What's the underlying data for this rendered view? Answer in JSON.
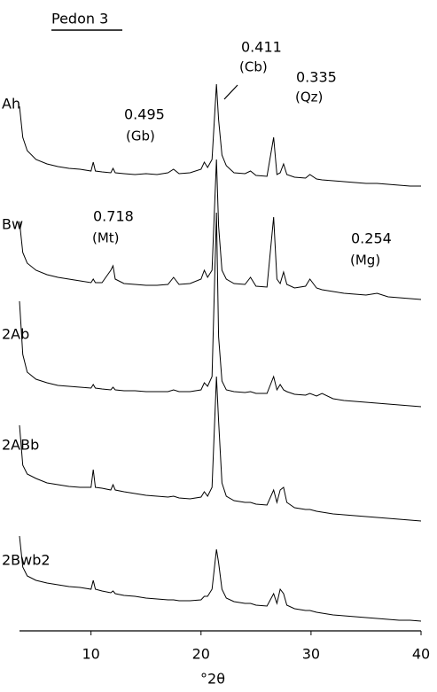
{
  "chart_data": {
    "type": "line",
    "title": "Pedon 3",
    "xlabel": "°2θ",
    "xlim": [
      3.5,
      40
    ],
    "xticks": [
      10,
      20,
      30,
      40
    ],
    "color": "#000000",
    "x": [
      3.5,
      3.8,
      4.2,
      5,
      6,
      7,
      8,
      9,
      10,
      10.2,
      10.4,
      11,
      11.8,
      12,
      12.2,
      13,
      14,
      15,
      16,
      17,
      17.5,
      18,
      19,
      20,
      20.3,
      20.6,
      21,
      21.4,
      21.6,
      21.9,
      22.3,
      23,
      24,
      24.5,
      25,
      26,
      26.6,
      26.9,
      27.2,
      27.5,
      27.8,
      28.5,
      29.5,
      29.9,
      30.5,
      31,
      32,
      33,
      34,
      35,
      36,
      37,
      38,
      39,
      40
    ],
    "series": [
      {
        "name": "Ah",
        "values": [
          95,
          60,
          45,
          35,
          30,
          27,
          25,
          24,
          22,
          32,
          22,
          21,
          20,
          25,
          20,
          19,
          18,
          19,
          18,
          20,
          24,
          19,
          20,
          24,
          32,
          26,
          35,
          120,
          80,
          40,
          28,
          20,
          19,
          22,
          17,
          16,
          60,
          18,
          20,
          30,
          18,
          15,
          14,
          18,
          13,
          12,
          11,
          10,
          9,
          8,
          8,
          7,
          6,
          5,
          5
        ]
      },
      {
        "name": "Bw",
        "values": [
          95,
          60,
          48,
          40,
          35,
          32,
          30,
          28,
          26,
          30,
          26,
          26,
          40,
          45,
          30,
          25,
          24,
          23,
          23,
          24,
          32,
          24,
          25,
          30,
          40,
          32,
          40,
          165,
          90,
          40,
          30,
          25,
          24,
          32,
          22,
          21,
          100,
          30,
          25,
          38,
          24,
          20,
          22,
          30,
          20,
          18,
          16,
          14,
          13,
          12,
          14,
          10,
          9,
          8,
          7
        ]
      },
      {
        "name": "2Ab",
        "values": [
          130,
          70,
          50,
          42,
          38,
          35,
          34,
          33,
          32,
          36,
          32,
          31,
          30,
          33,
          30,
          29,
          29,
          28,
          28,
          28,
          30,
          28,
          28,
          30,
          38,
          34,
          45,
          230,
          90,
          40,
          30,
          28,
          27,
          28,
          26,
          26,
          45,
          30,
          36,
          30,
          28,
          25,
          24,
          26,
          23,
          26,
          20,
          18,
          17,
          16,
          15,
          14,
          13,
          12,
          11
        ]
      },
      {
        "name": "2ABb",
        "values": [
          115,
          70,
          60,
          55,
          50,
          48,
          46,
          45,
          45,
          65,
          45,
          44,
          42,
          48,
          42,
          40,
          38,
          36,
          35,
          34,
          35,
          33,
          32,
          34,
          40,
          35,
          45,
          170,
          120,
          50,
          35,
          30,
          28,
          28,
          26,
          25,
          42,
          28,
          42,
          45,
          28,
          22,
          20,
          20,
          18,
          17,
          15,
          14,
          13,
          12,
          11,
          10,
          9,
          8,
          7
        ]
      },
      {
        "name": "2Bwb2",
        "values": [
          100,
          65,
          55,
          50,
          47,
          45,
          43,
          42,
          40,
          50,
          40,
          38,
          36,
          38,
          35,
          33,
          32,
          30,
          29,
          28,
          28,
          27,
          27,
          28,
          32,
          32,
          40,
          85,
          70,
          40,
          30,
          26,
          24,
          24,
          22,
          21,
          35,
          24,
          40,
          35,
          22,
          18,
          16,
          16,
          14,
          13,
          11,
          10,
          9,
          8,
          7,
          6,
          5,
          5,
          4
        ]
      }
    ],
    "annotations": [
      "0.411",
      "(Cb)",
      "0.495",
      "(Gb)",
      "0.335",
      "(Qz)",
      "0.718",
      "(Mt)",
      "0.254",
      "(Mg)"
    ]
  }
}
